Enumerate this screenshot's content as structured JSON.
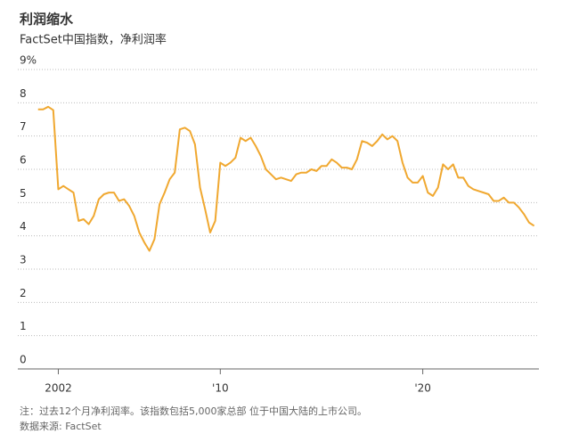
{
  "chart_data": {
    "type": "line",
    "title": "利润缩水",
    "subtitle": "FactSet中国指数，净利润率",
    "notes": [
      "注：过去12个月净利润率。该指数包括5,000家总部 位于中国大陆的上市公司。",
      "数据来源: FactSet"
    ],
    "x": [
      2001,
      2001.25,
      2001.5,
      2001.75,
      2002,
      2002.25,
      2002.5,
      2002.75,
      2003,
      2003.25,
      2003.5,
      2003.75,
      2004,
      2004.25,
      2004.5,
      2004.75,
      2005,
      2005.25,
      2005.5,
      2005.75,
      2006,
      2006.25,
      2006.5,
      2006.75,
      2007,
      2007.25,
      2007.5,
      2007.75,
      2008,
      2008.25,
      2008.5,
      2008.75,
      2009,
      2009.25,
      2009.5,
      2009.75,
      2010,
      2010.25,
      2010.5,
      2010.75,
      2011,
      2011.25,
      2011.5,
      2011.75,
      2012,
      2012.25,
      2012.5,
      2012.75,
      2013,
      2013.25,
      2013.5,
      2013.75,
      2014,
      2014.25,
      2014.5,
      2014.75,
      2015,
      2015.25,
      2015.5,
      2015.75,
      2016,
      2016.25,
      2016.5,
      2016.75,
      2017,
      2017.25,
      2017.5,
      2017.75,
      2018,
      2018.25,
      2018.5,
      2018.75,
      2019,
      2019.25,
      2019.5,
      2019.75,
      2020,
      2020.25,
      2020.5,
      2020.75,
      2021,
      2021.25,
      2021.5,
      2021.75,
      2022,
      2022.25,
      2022.5,
      2022.75,
      2023,
      2023.25,
      2023.5,
      2023.75,
      2024,
      2024.25,
      2024.5,
      2024.75,
      2025,
      2025.25,
      2025.5
    ],
    "series": [
      {
        "color": "#f0a830",
        "values": [
          7.8,
          7.8,
          7.88,
          7.78,
          5.4,
          5.5,
          5.4,
          5.3,
          4.45,
          4.5,
          4.35,
          4.6,
          5.1,
          5.25,
          5.3,
          5.3,
          5.05,
          5.1,
          4.9,
          4.6,
          4.1,
          3.8,
          3.55,
          3.9,
          4.95,
          5.3,
          5.7,
          5.9,
          7.2,
          7.25,
          7.15,
          6.75,
          5.45,
          4.8,
          4.1,
          4.45,
          6.2,
          6.1,
          6.2,
          6.35,
          6.95,
          6.85,
          6.95,
          6.7,
          6.4,
          6.0,
          5.85,
          5.7,
          5.75,
          5.7,
          5.65,
          5.85,
          5.9,
          5.9,
          6.0,
          5.95,
          6.1,
          6.1,
          6.3,
          6.2,
          6.05,
          6.05,
          6.0,
          6.3,
          6.85,
          6.8,
          6.7,
          6.85,
          7.05,
          6.9,
          7.0,
          6.85,
          6.2,
          5.75,
          5.6,
          5.6,
          5.8,
          5.3,
          5.2,
          5.45,
          6.15,
          6.0,
          6.15,
          5.75,
          5.75,
          5.5,
          5.4,
          5.35,
          5.3,
          5.25,
          5.05,
          5.05,
          5.15,
          5.0,
          5.0,
          4.85,
          4.65,
          4.4,
          4.3
        ]
      }
    ],
    "xlim": [
      2000,
      2026
    ],
    "xticks": [
      {
        "value": 2002,
        "label": "2002"
      },
      {
        "value": 2010,
        "label": "'10"
      },
      {
        "value": 2020,
        "label": "'20"
      }
    ],
    "ylim": [
      0,
      9
    ],
    "yticks": [
      0,
      1,
      2,
      3,
      4,
      5,
      6,
      7,
      8,
      {
        "value": 9,
        "label": "9%"
      }
    ],
    "grid": true
  }
}
